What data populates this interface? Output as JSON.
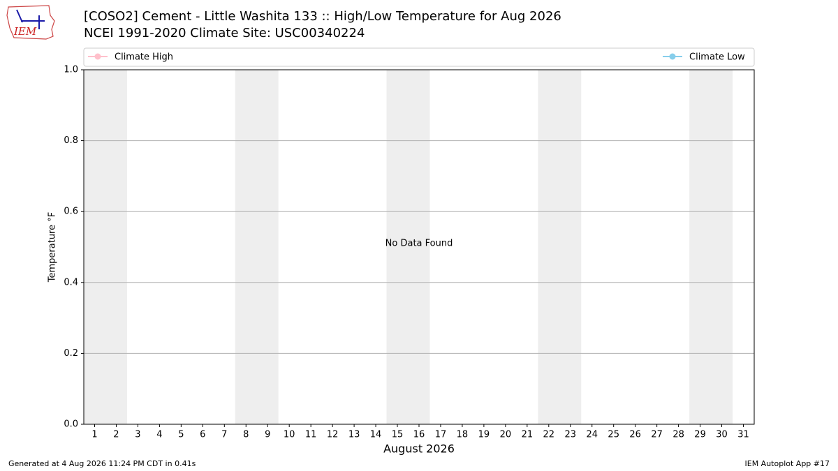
{
  "logo": "IEM",
  "chart_data": {
    "type": "line",
    "title": "[COSO2] Cement - Little Washita 133 :: High/Low Temperature for Aug 2026",
    "subtitle": "NCEI 1991-2020 Climate Site: USC00340224",
    "x_label": "August 2026",
    "y_label": "Temperature °F",
    "annotation": "No Data Found",
    "x": [],
    "series": [
      {
        "name": "Climate High",
        "color": "#ffc0cb",
        "values": []
      },
      {
        "name": "Climate Low",
        "color": "#87ceeb",
        "values": []
      }
    ],
    "xlim": [
      0.5,
      31.5
    ],
    "xticks": [
      1,
      2,
      3,
      4,
      5,
      6,
      7,
      8,
      9,
      10,
      11,
      12,
      13,
      14,
      15,
      16,
      17,
      18,
      19,
      20,
      21,
      22,
      23,
      24,
      25,
      26,
      27,
      28,
      29,
      30,
      31
    ],
    "ylim": [
      0,
      1
    ],
    "yticks": [
      {
        "value": 0,
        "label": "0.0"
      },
      0.2,
      0.4,
      0.6,
      0.8,
      {
        "value": 1,
        "label": "1.0"
      }
    ],
    "grid": true
  },
  "footer": {
    "left": "Generated at 4 Aug 2026 11:24 PM CDT in 0.41s",
    "right": "IEM Autoplot App #17"
  }
}
